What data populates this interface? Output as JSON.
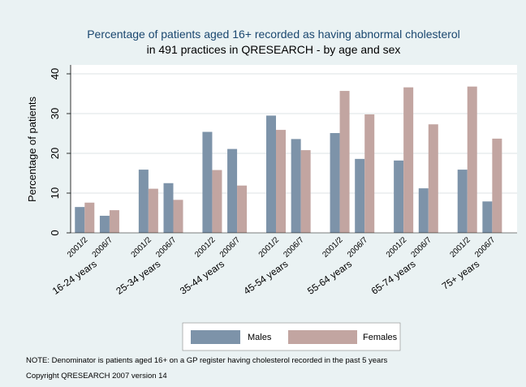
{
  "chart_data": {
    "type": "bar",
    "title": "Percentage of patients aged 16+ recorded as having abnormal cholesterol",
    "subtitle": "in 491 practices in QRESEARCH - by age and sex",
    "y_label": "Percentage of patients",
    "groups": [
      "16-24 years",
      "25-34 years",
      "35-44 years",
      "45-54 years",
      "55-64 years",
      "65-74 years",
      "75+ years"
    ],
    "categories": [
      "2001/2",
      "2006/7",
      "2001/2",
      "2006/7",
      "2001/2",
      "2006/7",
      "2001/2",
      "2006/7",
      "2001/2",
      "2006/7",
      "2001/2",
      "2006/7",
      "2001/2",
      "2006/7"
    ],
    "series": [
      {
        "name": "Males",
        "color": "#7d93a9",
        "values": [
          6.5,
          4.3,
          15.9,
          12.5,
          25.4,
          21.1,
          29.5,
          23.6,
          25.1,
          18.6,
          18.2,
          11.2,
          15.9,
          7.9
        ]
      },
      {
        "name": "Females",
        "color": "#c2a5a1",
        "values": [
          7.6,
          5.7,
          11.1,
          8.3,
          15.8,
          11.9,
          25.9,
          20.8,
          35.7,
          29.8,
          36.6,
          27.3,
          36.8,
          23.7
        ]
      }
    ],
    "ylim": [
      0,
      40
    ],
    "yticks": [
      0,
      10,
      20,
      30,
      40
    ],
    "grid": true,
    "notes": [
      "NOTE: Denominator is patients aged 16+ on a GP register having cholesterol recorded in the past 5 years",
      "Copyright QRESEARCH 2007 version 14"
    ]
  }
}
